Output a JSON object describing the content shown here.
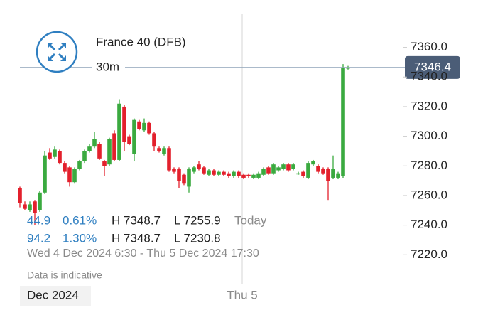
{
  "chart_data": {
    "type": "candlestick",
    "title": "France 40 (DFB)",
    "interval": "30m",
    "last_value": 7346.4,
    "last_label": "7346.4",
    "open": [
      7265,
      7254,
      7250,
      7256,
      7250,
      7262,
      7289,
      7286,
      7290,
      7282,
      7279,
      7269,
      7278,
      7283,
      7290,
      7293,
      7295,
      7283,
      7281,
      7302,
      7284,
      7320,
      7300,
      7288,
      7310,
      7304,
      7309,
      7302,
      7292,
      7288,
      7292,
      7278,
      7278,
      7274,
      7266,
      7276,
      7281,
      7279,
      7274,
      7277,
      7274,
      7276,
      7275,
      7273,
      7276,
      7274,
      7274,
      7272,
      7272,
      7274,
      7279,
      7275,
      7277,
      7278,
      7281,
      7278,
      7275,
      7276,
      7272,
      7281,
      7280,
      7278,
      7278,
      7272,
      7272,
      7273,
      7346
    ],
    "high": [
      7266,
      7256,
      7256,
      7257,
      7263,
      7290,
      7292,
      7293,
      7291,
      7283,
      7280,
      7279,
      7284,
      7291,
      7295,
      7303,
      7296,
      7284,
      7299,
      7304,
      7325,
      7321,
      7301,
      7312,
      7311,
      7312,
      7310,
      7303,
      7293,
      7293,
      7293,
      7279,
      7279,
      7275,
      7279,
      7280,
      7283,
      7280,
      7278,
      7278,
      7277,
      7277,
      7276,
      7277,
      7277,
      7275,
      7275,
      7275,
      7276,
      7279,
      7280,
      7282,
      7280,
      7282,
      7282,
      7282,
      7276,
      7277,
      7283,
      7284,
      7281,
      7279,
      7279,
      7287,
      7276,
      7348.7,
      7347.5
    ],
    "low": [
      7252,
      7250,
      7249,
      7240,
      7249,
      7261,
      7284,
      7285,
      7281,
      7275,
      7266,
      7268,
      7277,
      7282,
      7289,
      7292,
      7284,
      7273,
      7280,
      7283,
      7283,
      7290,
      7294,
      7283,
      7304,
      7303,
      7301,
      7290,
      7289,
      7287,
      7276,
      7275,
      7265,
      7267,
      7262,
      7275,
      7277,
      7274,
      7273,
      7273,
      7273,
      7273,
      7272,
      7272,
      7272,
      7271,
      7272,
      7271,
      7271,
      7273,
      7274,
      7274,
      7276,
      7277,
      7276,
      7277,
      7274,
      7272,
      7271,
      7280,
      7275,
      7274,
      7257,
      7271,
      7271,
      7272,
      7345
    ],
    "close": [
      7255,
      7251,
      7254,
      7248,
      7262,
      7287,
      7285,
      7291,
      7282,
      7276,
      7269,
      7278,
      7283,
      7290,
      7293,
      7298,
      7285,
      7280,
      7298,
      7284,
      7322,
      7296,
      7295,
      7311,
      7305,
      7309,
      7302,
      7293,
      7290,
      7292,
      7277,
      7276,
      7270,
      7268,
      7278,
      7279,
      7278,
      7275,
      7277,
      7274,
      7276,
      7274,
      7273,
      7276,
      7273,
      7272,
      7273,
      7274,
      7275,
      7278,
      7275,
      7281,
      7279,
      7281,
      7277,
      7281,
      7275,
      7273,
      7282,
      7283,
      7276,
      7275,
      7270,
      7278,
      7275,
      7346,
      7346.4
    ],
    "up_color": "#3aaa3f",
    "down_color": "#e3202c",
    "ylim": [
      7211.5,
      7367
    ],
    "yticks": [
      {
        "value": 7220,
        "label": "7220.0"
      },
      {
        "value": 7240,
        "label": "7240.0"
      },
      {
        "value": 7260,
        "label": "7260.0"
      },
      {
        "value": 7280,
        "label": "7280.0"
      },
      {
        "value": 7300,
        "label": "7300.0"
      },
      {
        "value": 7320,
        "label": "7320.0"
      },
      {
        "value": 7340,
        "label": "7340.0"
      },
      {
        "value": 7360,
        "label": "7360.0"
      }
    ],
    "stats": [
      {
        "change": "44.9",
        "change_pct": "0.61%",
        "high": "H 7348.7",
        "low": "L 7255.9",
        "period": "Today"
      },
      {
        "change": "94.2",
        "change_pct": "1.30%",
        "high": "H 7348.7",
        "low": "L 7230.8"
      }
    ],
    "date_range": "Wed 4 Dec 2024 6:30 - Thu 5 Dec 2024 17:30",
    "note": "Data is indicative",
    "x_period": "Dec 2024",
    "x_marker": "Thu 5"
  }
}
